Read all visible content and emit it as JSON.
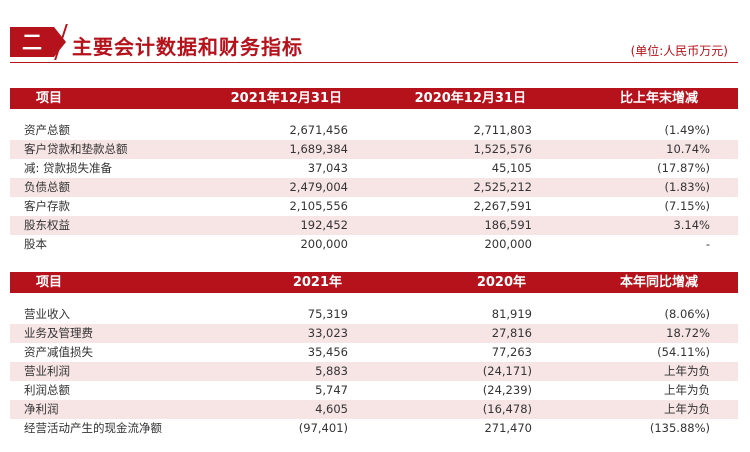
{
  "header": {
    "section_number": "二",
    "title": "主要会计数据和财务指标",
    "unit": "(单位:人民币万元)"
  },
  "balance_table": {
    "columns": [
      "项目",
      "2021年12月31日",
      "2020年12月31日",
      "比上年末增减"
    ],
    "rows": [
      [
        "资产总额",
        "2,671,456",
        "2,711,803",
        "(1.49%)"
      ],
      [
        "客户贷款和垫款总额",
        "1,689,384",
        "1,525,576",
        "10.74%"
      ],
      [
        "减: 贷款损失准备",
        "37,043",
        "45,105",
        "(17.87%)"
      ],
      [
        "负债总额",
        "2,479,004",
        "2,525,212",
        "(1.83%)"
      ],
      [
        "客户存款",
        "2,105,556",
        "2,267,591",
        "(7.15%)"
      ],
      [
        "股东权益",
        "192,452",
        "186,591",
        "3.14%"
      ],
      [
        "股本",
        "200,000",
        "200,000",
        "-"
      ]
    ]
  },
  "income_table": {
    "columns": [
      "项目",
      "2021年",
      "2020年",
      "本年同比增减"
    ],
    "rows": [
      [
        "营业收入",
        "75,319",
        "81,919",
        "(8.06%)"
      ],
      [
        "业务及管理费",
        "33,023",
        "27,816",
        "18.72%"
      ],
      [
        "资产减值损失",
        "35,456",
        "77,263",
        "(54.11%)"
      ],
      [
        "营业利润",
        "5,883",
        "(24,171)",
        "上年为负"
      ],
      [
        "利润总额",
        "5,747",
        "(24,239)",
        "上年为负"
      ],
      [
        "净利润",
        "4,605",
        "(16,478)",
        "上年为负"
      ],
      [
        "经营活动产生的现金流净额",
        "(97,401)",
        "271,470",
        "(135.88%)"
      ]
    ]
  },
  "colors": {
    "accent": "#b5121b",
    "row_shade": "#f7e5e5"
  }
}
